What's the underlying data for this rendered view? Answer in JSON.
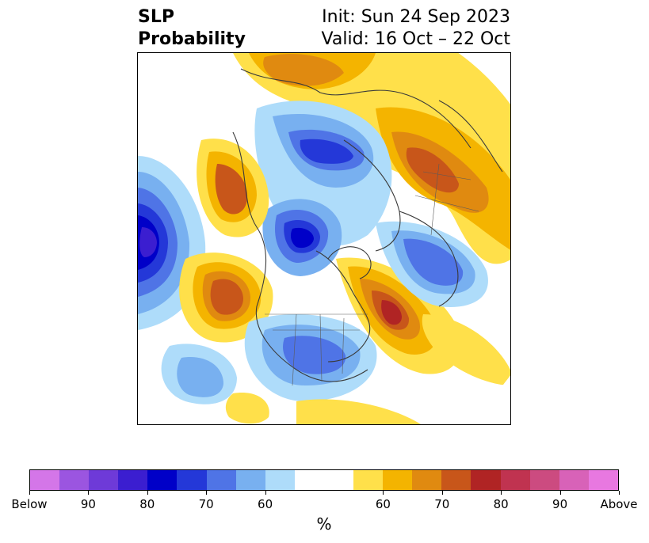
{
  "title": {
    "left_line1": "SLP",
    "left_line2": "Probability",
    "right_line1": "Init: Sun 24 Sep 2023",
    "right_line2": "Valid: 16 Oct – 22 Oct"
  },
  "colorbar": {
    "colors": [
      "#d476e8",
      "#9b55e0",
      "#6e3ad8",
      "#3b1ed0",
      "#0000c8",
      "#2438d8",
      "#4f74e6",
      "#78b0f0",
      "#aedcfa",
      "#ffffff",
      "#ffffff",
      "#ffe04a",
      "#f4b400",
      "#e08a10",
      "#c8561a",
      "#b02424",
      "#c03350",
      "#cc4b80",
      "#d862b8",
      "#e878e0"
    ],
    "tick_labels": [
      "Below",
      "90",
      "80",
      "70",
      "60",
      "60",
      "70",
      "80",
      "90",
      "Above"
    ],
    "unit": "%"
  },
  "map": {
    "projection": "north-polar-stereographic",
    "variable": "sea level pressure probability"
  }
}
